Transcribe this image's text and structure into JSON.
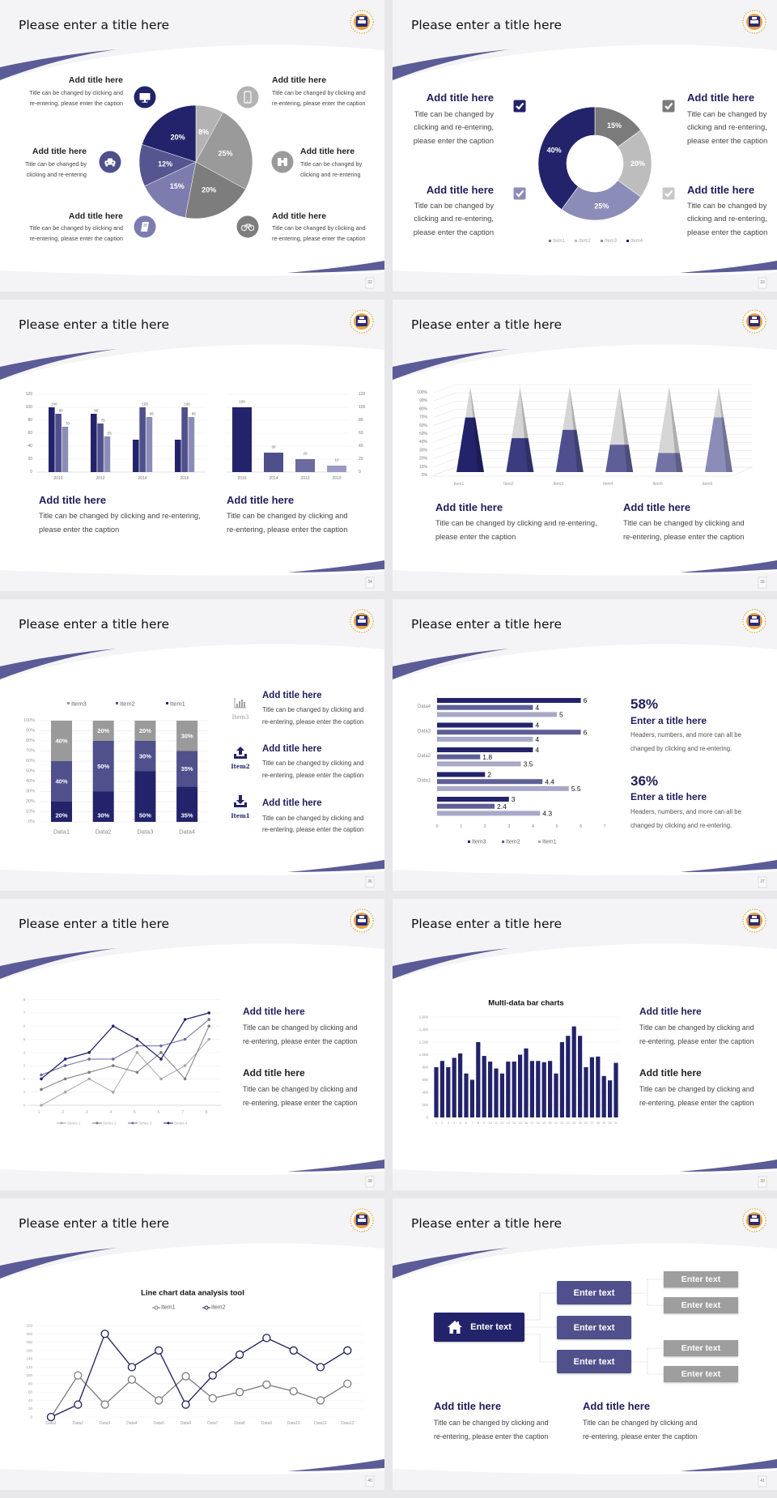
{
  "colors": {
    "navy": "#23236b",
    "purple": "#50508c",
    "lavender": "#8c8cb8",
    "gray": "#9a9a9a",
    "light_gray": "#bdbdbd",
    "swoosh": "#5b5b97"
  },
  "slides": [
    {
      "title": "Please enter a title here",
      "page": "32",
      "blocks": [
        {
          "title": "Add title here",
          "icon": "monitor-icon",
          "lines": [
            "Title can be changed by clicking and",
            "re-entering, please enter the caption"
          ]
        },
        {
          "title": "Add title here",
          "icon": "car-icon",
          "lines": [
            "Title can be changed by",
            "clicking and re-entering"
          ]
        },
        {
          "title": "Add title here",
          "icon": "book-icon",
          "lines": [
            "Title can be changed by clicking and",
            "re-entering, please enter the caption"
          ]
        },
        {
          "title": "Add title here",
          "icon": "phone-icon",
          "lines": [
            "Title can be changed by clicking and",
            "re-entering, please enter the caption"
          ]
        },
        {
          "title": "Add title here",
          "icon": "binoculars-icon",
          "lines": [
            "Title can be changed by",
            "clicking and re-entering"
          ]
        },
        {
          "title": "Add title here",
          "icon": "bicycle-icon",
          "lines": [
            "Title can be changed by clicking and",
            "re-entering, please enter the caption"
          ]
        }
      ]
    },
    {
      "title": "Please enter a title here",
      "page": "33",
      "blocks": [
        {
          "title": "Add title here",
          "lines": [
            "Title can be changed by",
            "clicking and re-entering,",
            "please enter the caption"
          ]
        },
        {
          "title": "Add title here",
          "lines": [
            "Title can be changed by",
            "clicking and re-entering,",
            "please enter the caption"
          ]
        },
        {
          "title": "Add title here",
          "lines": [
            "Title can be changed by",
            "clicking and re-entering,",
            "please enter the caption"
          ]
        },
        {
          "title": "Add title here",
          "lines": [
            "Title can be changed by",
            "clicking and re-entering,",
            "please enter the caption"
          ]
        }
      ]
    },
    {
      "title": "Please enter a title here",
      "page": "34",
      "blocks": [
        {
          "title": "Add title here",
          "lines": [
            "Title can be changed by clicking and re-entering,",
            "please enter the caption"
          ]
        },
        {
          "title": "Add title here",
          "lines": [
            "Title can be changed by clicking and",
            "re-entering, please enter the caption"
          ]
        }
      ]
    },
    {
      "title": "Please enter a title here",
      "page": "35",
      "blocks": [
        {
          "title": "Add title here",
          "lines": [
            "Title can be changed by clicking and re-entering,",
            "please enter the caption"
          ]
        },
        {
          "title": "Add title here",
          "lines": [
            "Title can be changed by clicking and",
            "re-entering, please enter the caption"
          ]
        }
      ]
    },
    {
      "title": "Please enter a title here",
      "page": "36",
      "blocks": [
        {
          "title": "Add title here",
          "icon": "bar-chart-icon",
          "icon_label": "Item3",
          "lines": [
            "Title can be changed by clicking and",
            "re-entering, please enter the caption"
          ]
        },
        {
          "title": "Add title here",
          "icon": "upload-icon",
          "icon_label": "Item2",
          "lines": [
            "Title can be changed by clicking and",
            "re-entering, please enter the caption"
          ]
        },
        {
          "title": "Add title here",
          "icon": "download-icon",
          "icon_label": "Item1",
          "lines": [
            "Title can be changed by clicking and",
            "re-entering, please enter the caption"
          ]
        }
      ]
    },
    {
      "title": "Please enter a title here",
      "page": "37",
      "stats": [
        {
          "value": "58%",
          "title": "Enter a title here",
          "lines": [
            "Headers, numbers, and more can all be",
            "changed by clicking and re-entering."
          ]
        },
        {
          "value": "36%",
          "title": "Enter a title here",
          "lines": [
            "Headers, numbers, and more can all be",
            "changed by clicking and re-entering."
          ]
        }
      ]
    },
    {
      "title": "Please enter a title here",
      "page": "38",
      "blocks": [
        {
          "title": "Add title here",
          "lines": [
            "Title can be changed by clicking and",
            "re-entering, please enter the caption"
          ]
        },
        {
          "title": "Add title here",
          "lines": [
            "Title can be changed by clicking and",
            "re-entering, please enter the caption"
          ]
        }
      ]
    },
    {
      "title": "Please enter a title here",
      "page": "39",
      "blocks": [
        {
          "title": "Add title here",
          "lines": [
            "Title can be changed by clicking and",
            "re-entering, please enter the caption"
          ]
        },
        {
          "title": "Add title here",
          "lines": [
            "Title can be changed by clicking and",
            "re-entering, please enter the caption"
          ]
        }
      ]
    },
    {
      "title": "Please enter a title here",
      "page": "40"
    },
    {
      "title": "Please enter a title here",
      "page": "41",
      "diagram": {
        "root": "Enter text",
        "middle": [
          "Enter text",
          "Enter text",
          "Enter text"
        ],
        "leaves": [
          "Enter text",
          "Enter text",
          "Enter text",
          "Enter text"
        ]
      },
      "blocks": [
        {
          "title": "Add title here",
          "lines": [
            "Title can be changed by clicking and",
            "re-entering, please enter the caption"
          ]
        },
        {
          "title": "Add title here",
          "lines": [
            "Title can be changed by clicking and",
            "re-entering, please enter the caption"
          ]
        }
      ]
    }
  ],
  "chart_data": [
    {
      "type": "pie",
      "values": [
        8,
        25,
        20,
        15,
        12,
        20
      ],
      "unit": "%",
      "colors": [
        "#b3b3b3",
        "#9a9a9a",
        "#7d7d7d",
        "#7c7caf",
        "#55558f",
        "#23236b"
      ]
    },
    {
      "type": "pie",
      "donut": true,
      "categories": [
        "Item1",
        "Item2",
        "Item3",
        "Item4"
      ],
      "values": [
        15,
        20,
        25,
        40
      ],
      "unit": "%",
      "colors": [
        "#7b7b7b",
        "#bdbdbd",
        "#8c8cb8",
        "#23236b"
      ],
      "legend": "bottom"
    },
    {
      "type": "bar",
      "categories": [
        "2010",
        "2012",
        "2014",
        "2016"
      ],
      "ylim": [
        0,
        120
      ],
      "yticks": [
        "0",
        "20",
        "40",
        "60",
        "80",
        "100",
        "120"
      ],
      "grid": true,
      "series": [
        {
          "values": [
            100,
            90,
            50,
            50
          ],
          "data_labels": [
            100,
            90,
            null,
            null
          ],
          "color": "#23236b"
        },
        {
          "values": [
            90,
            75,
            100,
            100
          ],
          "data_labels": [
            90,
            75,
            100,
            100
          ],
          "color": "#4f4f8c"
        },
        {
          "values": [
            70,
            55,
            85,
            85
          ],
          "data_labels": [
            70,
            55,
            85,
            85
          ],
          "color": "#8c8cb8"
        }
      ]
    },
    {
      "type": "bar",
      "categories": [
        "2016",
        "2014",
        "2012",
        "2010"
      ],
      "values": [
        100,
        30,
        20,
        10
      ],
      "ylim": [
        0,
        120
      ],
      "yticks": [
        "0",
        "20",
        "40",
        "60",
        "80",
        "100",
        "120"
      ],
      "y_axis": "right",
      "grid": true,
      "colors": [
        "#23236b",
        "#4f4f8c",
        "#6b6ba0",
        "#9a9ac4"
      ]
    },
    {
      "type": "bar",
      "style": "3d-pyramid",
      "categories": [
        "Item1",
        "Item2",
        "Item3",
        "Item4",
        "Item5",
        "Item6"
      ],
      "values": [
        70,
        45,
        55,
        37,
        27,
        70
      ],
      "ylim": [
        0,
        100
      ],
      "unit": "%",
      "yticks": [
        "0%",
        "10%",
        "20%",
        "30%",
        "40%",
        "50%",
        "60%",
        "70%",
        "80%",
        "90%",
        "100%"
      ],
      "colors": [
        "#23236b",
        "#3b3b80",
        "#4f4f8f",
        "#5f5f98",
        "#7272a5",
        "#8c8cb8"
      ]
    },
    {
      "type": "bar",
      "stacked": "percent",
      "categories": [
        "Data1",
        "Data2",
        "Data3",
        "Data4"
      ],
      "ylim": [
        0,
        100
      ],
      "yticks": [
        "0%",
        "10%",
        "20%",
        "30%",
        "40%",
        "50%",
        "60%",
        "70%",
        "80%",
        "90%",
        "100%"
      ],
      "legend": "top",
      "legend_order": [
        "Item3",
        "Item2",
        "Item1"
      ],
      "series": [
        {
          "name": "Item1",
          "values": [
            20,
            30,
            50,
            35
          ],
          "color": "#23236b"
        },
        {
          "name": "Item2",
          "values": [
            40,
            50,
            30,
            35
          ],
          "color": "#50508c"
        },
        {
          "name": "Item3",
          "values": [
            40,
            20,
            20,
            30
          ],
          "color": "#9a9a9a"
        }
      ]
    },
    {
      "type": "bar",
      "orientation": "horizontal",
      "categories": [
        "Data4",
        "Data3",
        "Data2",
        "Data1",
        ""
      ],
      "xlim": [
        0,
        7
      ],
      "xticks": [
        "0",
        "1",
        "2",
        "3",
        "4",
        "5",
        "6",
        "7"
      ],
      "legend": "bottom",
      "series": [
        {
          "name": "Item3",
          "values": [
            6,
            4,
            4,
            2,
            3
          ],
          "color": "#23236b"
        },
        {
          "name": "Item2",
          "values": [
            4,
            6,
            1.8,
            4.4,
            2.4
          ],
          "color": "#5f5f98"
        },
        {
          "name": "Item1",
          "values": [
            5,
            4,
            3.5,
            5.5,
            4.3
          ],
          "color": "#a8a8c8"
        }
      ]
    },
    {
      "type": "line",
      "x": [
        "1",
        "2",
        "3",
        "4",
        "5",
        "6",
        "7",
        "8"
      ],
      "ylim": [
        0,
        8
      ],
      "yticks": [
        "0",
        "1",
        "2",
        "3",
        "4",
        "5",
        "6",
        "7",
        "8"
      ],
      "legend": "bottom",
      "grid": true,
      "series": [
        {
          "name": "Series 1",
          "values": [
            0,
            1,
            2,
            1,
            4,
            2,
            3,
            5
          ],
          "color": "#a8a8a8"
        },
        {
          "name": "Series 2",
          "values": [
            1.2,
            2,
            2.5,
            3,
            2.5,
            4,
            2,
            6
          ],
          "color": "#7b7b7b"
        },
        {
          "name": "Series 3",
          "values": [
            2.3,
            3,
            3.5,
            3.5,
            4.5,
            4.5,
            5,
            6.5
          ],
          "color": "#6b6ba0"
        },
        {
          "name": "Series 4",
          "values": [
            2,
            3.5,
            4,
            6,
            5,
            3.5,
            6.5,
            7
          ],
          "color": "#23236b"
        }
      ]
    },
    {
      "type": "bar",
      "title": "Multi-data bar charts",
      "ylim": [
        0,
        1600
      ],
      "yticks": [
        "0",
        "200",
        "400",
        "600",
        "800",
        "1,000",
        "1,200",
        "1,400",
        "1,600"
      ],
      "categories": [
        "1",
        "2",
        "3",
        "4",
        "5",
        "6",
        "7",
        "8",
        "9",
        "10",
        "11",
        "12",
        "13",
        "14",
        "15",
        "16",
        "17",
        "18",
        "19",
        "20",
        "21",
        "22",
        "23",
        "24",
        "25",
        "26",
        "27",
        "28",
        "29",
        "30",
        "31"
      ],
      "values": [
        800,
        900,
        800,
        950,
        1020,
        700,
        600,
        1200,
        980,
        890,
        780,
        700,
        890,
        890,
        1000,
        1100,
        900,
        900,
        880,
        900,
        700,
        1200,
        1300,
        1450,
        1300,
        800,
        960,
        970,
        660,
        590,
        870
      ],
      "color": "#23236b",
      "grid": true
    },
    {
      "type": "line",
      "title": "Line chart data analysis tool",
      "legend": "top",
      "ylim": [
        0,
        220
      ],
      "yticks": [
        "0",
        "20",
        "40",
        "60",
        "80",
        "100",
        "120",
        "140",
        "160",
        "180",
        "200",
        "220"
      ],
      "x": [
        "Data1",
        "Data2",
        "Data3",
        "Data4",
        "Data5",
        "Data6",
        "Data7",
        "Data8",
        "Data9",
        "Data10",
        "Data11",
        "Data12"
      ],
      "series": [
        {
          "name": "Item1",
          "values": [
            0,
            100,
            30,
            90,
            40,
            98,
            45,
            60,
            78,
            62,
            40,
            80
          ],
          "color": "#7b7b7b"
        },
        {
          "name": "Item2",
          "values": [
            0,
            30,
            200,
            120,
            160,
            30,
            100,
            150,
            190,
            160,
            120,
            160
          ],
          "color": "#1e1e5a"
        }
      ]
    }
  ]
}
